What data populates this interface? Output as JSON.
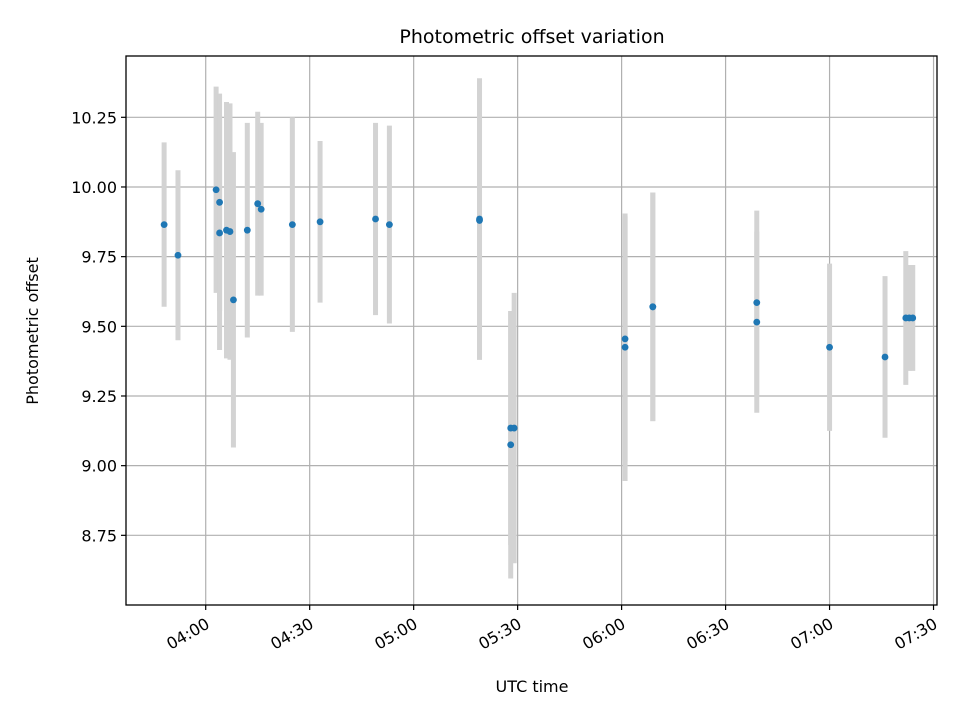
{
  "chart_data": {
    "type": "scatter",
    "title": "Photometric offset variation",
    "xlabel": "UTC time",
    "ylabel": "Photometric offset",
    "grid": true,
    "xlim": [
      "03:37",
      "07:31"
    ],
    "ylim": [
      8.5,
      10.47
    ],
    "x_ticks": [
      "04:00",
      "04:30",
      "05:00",
      "05:30",
      "06:00",
      "06:30",
      "07:00",
      "07:30"
    ],
    "y_ticks": [
      "8.75",
      "9.00",
      "9.25",
      "9.50",
      "9.75",
      "10.00",
      "10.25"
    ],
    "colors": {
      "points": "#1f77b4",
      "error_bars": "#d3d3d3",
      "grid": "#b0b0b0"
    },
    "points": [
      {
        "t": "03:48",
        "y": 9.865,
        "err": 0.295
      },
      {
        "t": "03:52",
        "y": 9.755,
        "err": 0.305
      },
      {
        "t": "04:03",
        "y": 9.99,
        "err": 0.37
      },
      {
        "t": "04:04",
        "y": 9.945,
        "err": 0.39
      },
      {
        "t": "04:04",
        "y": 9.835,
        "err": 0.42
      },
      {
        "t": "04:06",
        "y": 9.845,
        "err": 0.46
      },
      {
        "t": "04:07",
        "y": 9.84,
        "err": 0.46
      },
      {
        "t": "04:08",
        "y": 9.595,
        "err": 0.53
      },
      {
        "t": "04:12",
        "y": 9.845,
        "err": 0.385
      },
      {
        "t": "04:15",
        "y": 9.94,
        "err": 0.33
      },
      {
        "t": "04:16",
        "y": 9.92,
        "err": 0.31
      },
      {
        "t": "04:25",
        "y": 9.865,
        "err": 0.385
      },
      {
        "t": "04:33",
        "y": 9.875,
        "err": 0.29
      },
      {
        "t": "04:49",
        "y": 9.885,
        "err": 0.345
      },
      {
        "t": "04:53",
        "y": 9.865,
        "err": 0.355
      },
      {
        "t": "05:19",
        "y": 9.885,
        "err": 0.505
      },
      {
        "t": "05:19",
        "y": 9.88,
        "err": 0.5
      },
      {
        "t": "05:28",
        "y": 9.135,
        "err": 0.42
      },
      {
        "t": "05:28",
        "y": 9.075,
        "err": 0.48
      },
      {
        "t": "05:29",
        "y": 9.135,
        "err": 0.485
      },
      {
        "t": "06:01",
        "y": 9.455,
        "err": 0.44
      },
      {
        "t": "06:01",
        "y": 9.425,
        "err": 0.48
      },
      {
        "t": "06:09",
        "y": 9.57,
        "err": 0.41
      },
      {
        "t": "06:09",
        "y": 9.57,
        "err": 0.41
      },
      {
        "t": "06:39",
        "y": 9.585,
        "err": 0.33
      },
      {
        "t": "06:39",
        "y": 9.515,
        "err": 0.325
      },
      {
        "t": "07:00",
        "y": 9.425,
        "err": 0.3
      },
      {
        "t": "07:16",
        "y": 9.39,
        "err": 0.29
      },
      {
        "t": "07:22",
        "y": 9.53,
        "err": 0.24
      },
      {
        "t": "07:23",
        "y": 9.53,
        "err": 0.19
      },
      {
        "t": "07:24",
        "y": 9.53,
        "err": 0.19
      }
    ]
  }
}
